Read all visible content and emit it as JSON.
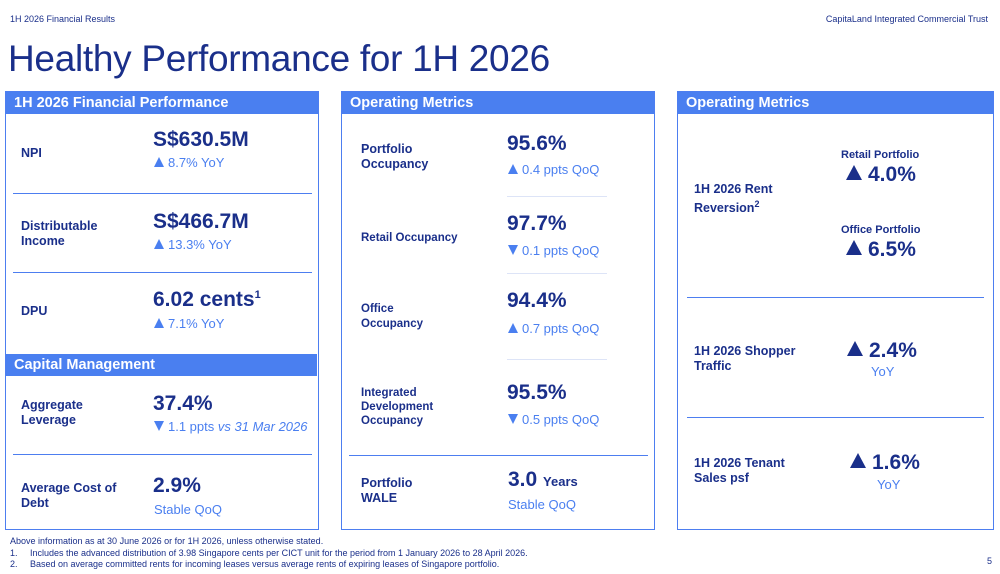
{
  "header": {
    "left": "1H 2026 Financial Results",
    "right": "CapitaLand Integrated Commercial Trust"
  },
  "title": "Healthy Performance for 1H 2026",
  "colors": {
    "primary": "#1a2f8a",
    "accent": "#4a7ff0"
  },
  "financial": {
    "header": "1H 2026 Financial Performance",
    "items": [
      {
        "label": "NPI",
        "value": "S$630.5M",
        "change": "8.7% YoY",
        "direction": "up"
      },
      {
        "label": "Distributable Income",
        "value": "S$466.7M",
        "change": "13.3% YoY",
        "direction": "up"
      },
      {
        "label": "DPU",
        "value": "6.02 cents",
        "sup": "1",
        "change": "7.1% YoY",
        "direction": "up"
      }
    ]
  },
  "capital": {
    "header": "Capital Management",
    "items": [
      {
        "label": "Aggregate Leverage",
        "value": "37.4%",
        "change": "1.1 ppts",
        "change_suffix": "vs 31 Mar 2026",
        "direction": "down"
      },
      {
        "label": "Average Cost of Debt",
        "value": "2.9%",
        "change": "Stable QoQ",
        "direction": "none"
      }
    ]
  },
  "operating_mid": {
    "header": "Operating Metrics",
    "items": [
      {
        "label": "Portfolio Occupancy",
        "value": "95.6%",
        "change": "0.4 ppts QoQ",
        "direction": "up"
      },
      {
        "label": "Retail Occupancy",
        "value": "97.7%",
        "change": "0.1 ppts QoQ",
        "direction": "down"
      },
      {
        "label": "Office Occupancy",
        "value": "94.4%",
        "change": "0.7 ppts QoQ",
        "direction": "up"
      },
      {
        "label": "Integrated Development Occupancy",
        "value": "95.5%",
        "change": "0.5 ppts QoQ",
        "direction": "down"
      }
    ],
    "wale": {
      "label": "Portfolio WALE",
      "value": "3.0",
      "unit": "Years",
      "change": "Stable QoQ"
    }
  },
  "operating_right": {
    "header": "Operating Metrics",
    "rent_reversion": {
      "label": "1H 2026 Rent Reversion",
      "sup": "2",
      "retail_label": "Retail Portfolio",
      "retail_value": "4.0%",
      "office_label": "Office Portfolio",
      "office_value": "6.5%"
    },
    "shopper": {
      "label": "1H 2026 Shopper Traffic",
      "value": "2.4%",
      "unit": "YoY"
    },
    "tenant": {
      "label": "1H 2026 Tenant Sales psf",
      "value": "1.6%",
      "unit": "YoY"
    }
  },
  "footnotes": {
    "intro": "Above information as at 30 June 2026 or for 1H 2026, unless otherwise stated.",
    "notes": [
      {
        "num": "1.",
        "text": "Includes the advanced distribution of 3.98 Singapore cents per CICT unit for the period from 1 January 2026 to 28 April 2026."
      },
      {
        "num": "2.",
        "text": "Based on average committed rents for incoming leases versus average rents of expiring leases of Singapore portfolio."
      }
    ]
  },
  "page_number": "5"
}
